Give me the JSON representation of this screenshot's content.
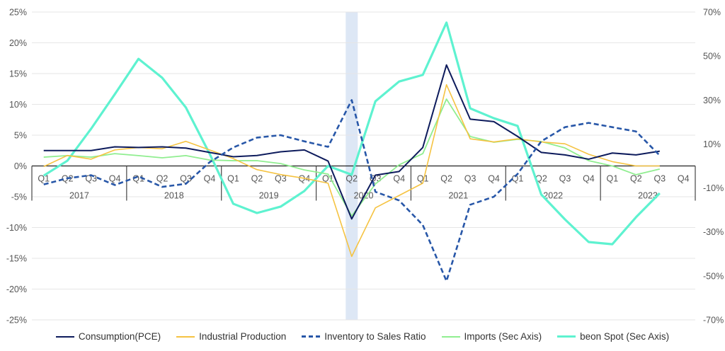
{
  "chart_data": {
    "type": "line",
    "years": [
      "2017",
      "2018",
      "2019",
      "2020",
      "2021",
      "2022",
      "2023"
    ],
    "quarters": [
      "Q1",
      "Q2",
      "Q3",
      "Q4"
    ],
    "left_axis": {
      "ylim": [
        -25,
        25
      ],
      "ticks": [
        25,
        20,
        15,
        10,
        5,
        0,
        -5,
        -10,
        -15,
        -20,
        -25
      ],
      "format": "%"
    },
    "right_axis": {
      "ylim": [
        -70,
        70
      ],
      "ticks": [
        70,
        50,
        30,
        10,
        -10,
        -30,
        -50,
        -70
      ],
      "format": "%"
    },
    "highlight": {
      "year": "2020",
      "quarter": "Q2",
      "color": "#dde7f5"
    },
    "grid": true,
    "legend_position": "bottom",
    "series": [
      {
        "name": "Consumption(PCE)",
        "axis": "left",
        "color": "#0d1b5c",
        "dash": false,
        "width": 2,
        "values": [
          2.5,
          2.5,
          2.5,
          3.1,
          3.0,
          3.1,
          2.9,
          2.2,
          1.5,
          1.7,
          2.3,
          2.6,
          0.8,
          -8.6,
          -1.5,
          -0.9,
          3.0,
          16.4,
          7.6,
          7.2,
          4.8,
          2.2,
          1.8,
          1.1,
          2.1,
          1.8,
          2.4,
          null
        ]
      },
      {
        "name": "Industrial Production",
        "axis": "left",
        "color": "#f5c342",
        "dash": false,
        "width": 1.6,
        "values": [
          -0.1,
          1.7,
          1.1,
          2.6,
          3.0,
          2.8,
          4.0,
          2.6,
          1.2,
          -0.6,
          -1.4,
          -2.0,
          -2.8,
          -14.7,
          -6.8,
          -4.8,
          -2.8,
          13.2,
          4.4,
          3.9,
          4.4,
          3.9,
          3.6,
          1.9,
          0.7,
          0.0,
          0.0,
          null
        ]
      },
      {
        "name": "Inventory to Sales Ratio",
        "axis": "left",
        "color": "#2857a8",
        "dash": true,
        "width": 2.6,
        "values": [
          -3.0,
          -2.0,
          -1.5,
          -3.1,
          -1.7,
          -3.4,
          -2.9,
          0.6,
          3.0,
          4.6,
          5.0,
          4.0,
          3.1,
          10.7,
          -4.2,
          -5.6,
          -9.6,
          -18.7,
          -6.3,
          -5.0,
          -1.3,
          4.0,
          6.3,
          7.0,
          6.3,
          5.6,
          1.7,
          null
        ]
      },
      {
        "name": "Imports (Sec Axis)",
        "axis": "right",
        "color": "#90ee90",
        "dash": false,
        "width": 1.8,
        "values": [
          4.0,
          4.7,
          4.0,
          5.6,
          4.7,
          3.7,
          4.7,
          2.7,
          2.4,
          2.4,
          1.1,
          -1.8,
          -3.7,
          -22.7,
          -8.2,
          0.5,
          5.6,
          30.4,
          13.4,
          10.8,
          12.1,
          11.1,
          8.2,
          2.4,
          0.0,
          -4.0,
          -1.4,
          null
        ]
      },
      {
        "name": "beon Spot (Sec Axis)",
        "axis": "right",
        "color": "#5ef2d0",
        "dash": false,
        "width": 3.2,
        "values": [
          -4.4,
          2.4,
          16.9,
          32.6,
          48.7,
          40.1,
          26.6,
          5.6,
          -17.2,
          -21.4,
          -18.5,
          -11.4,
          0.0,
          -4.0,
          29.4,
          38.4,
          41.4,
          65.2,
          26.2,
          21.7,
          18.2,
          -13.0,
          -24.3,
          -34.6,
          -35.6,
          -23.3,
          -12.4,
          null
        ]
      }
    ]
  }
}
